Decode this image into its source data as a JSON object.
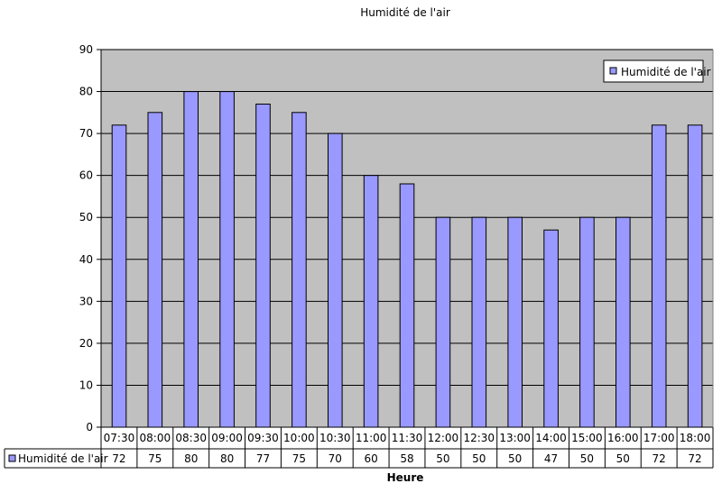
{
  "chart_data": {
    "type": "bar",
    "title": "Humidité de l'air",
    "xlabel": "Heure",
    "ylabel": "",
    "ylim": [
      0,
      90
    ],
    "ytick_step": 10,
    "grid": true,
    "legend_position": "top-right",
    "categories": [
      "07:30",
      "08:00",
      "08:30",
      "09:00",
      "09:30",
      "10:00",
      "10:30",
      "11:00",
      "11:30",
      "12:00",
      "12:30",
      "13:00",
      "14:00",
      "15:00",
      "16:00",
      "17:00",
      "18:00"
    ],
    "series": [
      {
        "name": "Humidité de l'air",
        "values": [
          72,
          75,
          80,
          80,
          77,
          75,
          70,
          60,
          58,
          50,
          50,
          50,
          47,
          50,
          50,
          72,
          72
        ],
        "color": "#9999ff"
      }
    ],
    "data_table": true
  },
  "colors": {
    "plot_background": "#c0c0c0",
    "gridline": "#000000",
    "bar_fill": "#9999ff",
    "bar_stroke": "#000000"
  }
}
